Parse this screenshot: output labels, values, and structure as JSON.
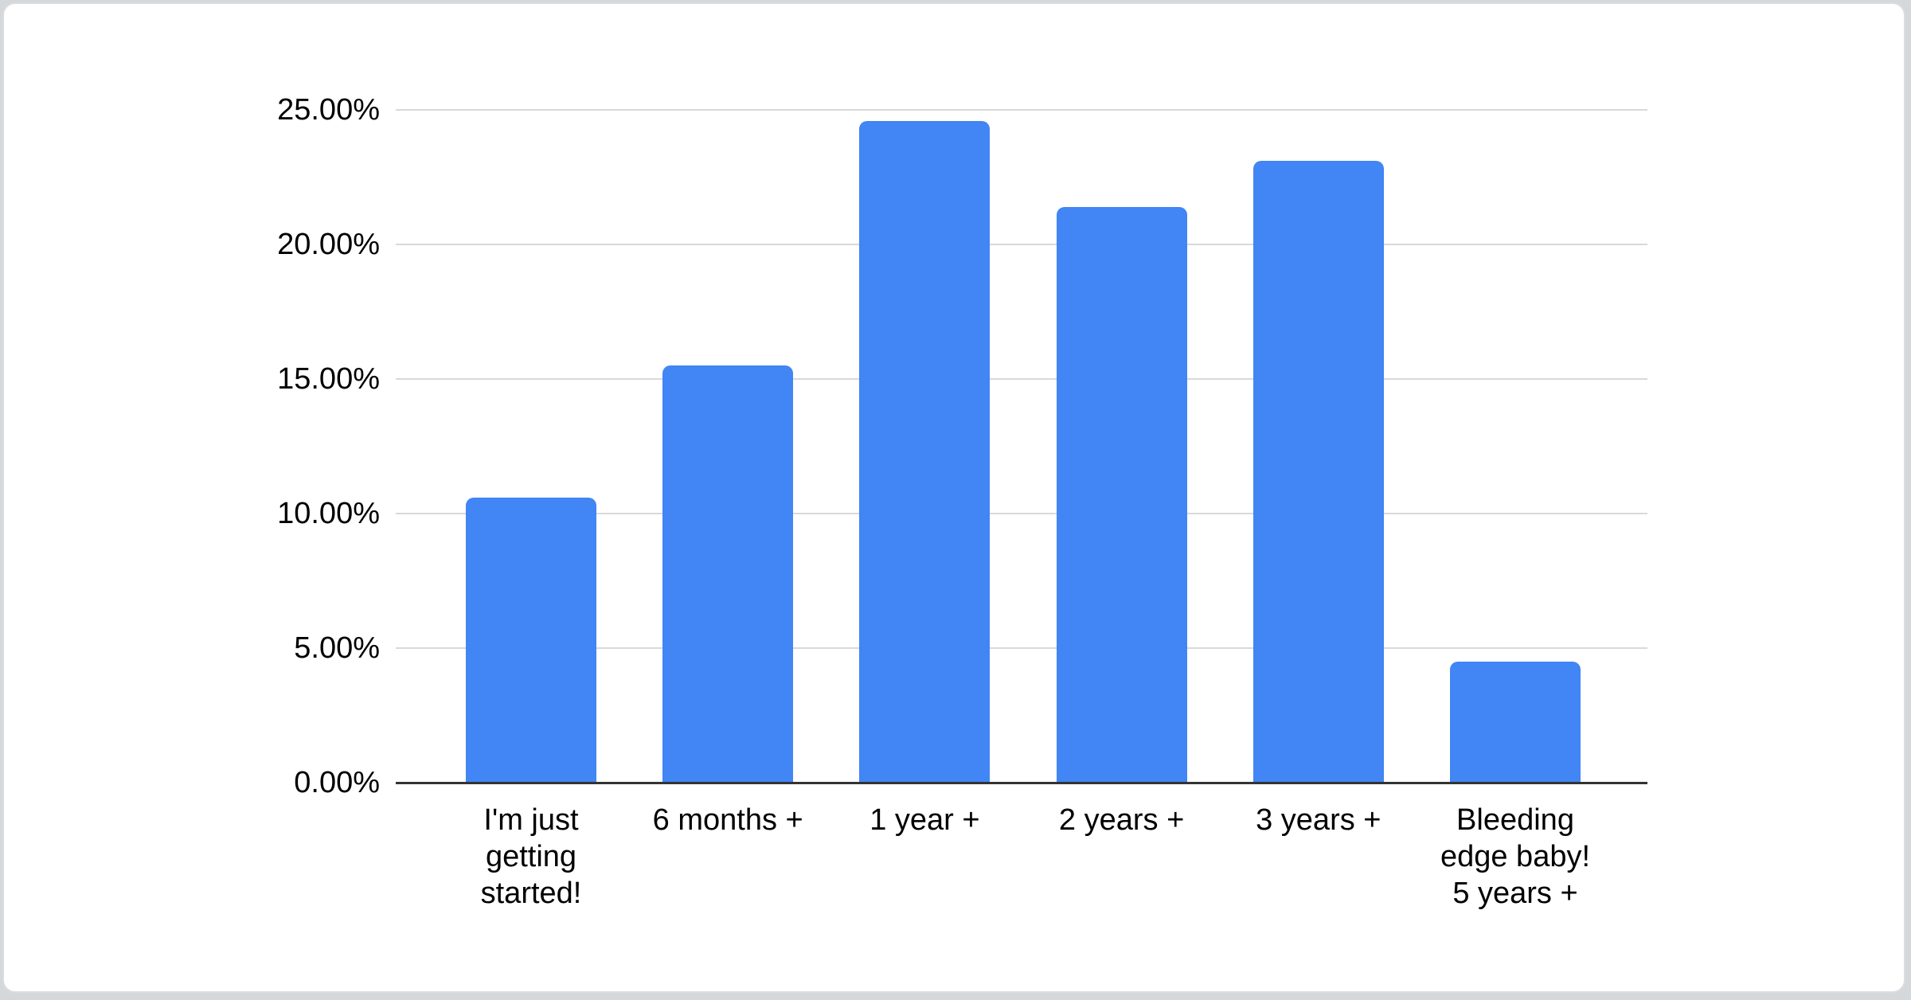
{
  "page": {
    "background_color": "#d5d8db",
    "card_background": "#ffffff",
    "card_border_color": "#dadce0"
  },
  "chart_data": {
    "type": "bar",
    "title": "",
    "xlabel": "",
    "ylabel": "",
    "categories": [
      "I'm just\ngetting\nstarted!",
      "6 months +",
      "1 year +",
      "2 years +",
      "3 years +",
      "Bleeding\nedge baby!\n5 years +"
    ],
    "values": [
      10.6,
      15.5,
      24.6,
      21.4,
      23.1,
      4.5
    ],
    "value_unit": "%",
    "ylim": [
      0,
      25
    ],
    "y_ticks": [
      {
        "value": 0,
        "label": "0.00%"
      },
      {
        "value": 5,
        "label": "5.00%"
      },
      {
        "value": 10,
        "label": "10.00%"
      },
      {
        "value": 15,
        "label": "15.00%"
      },
      {
        "value": 20,
        "label": "20.00%"
      },
      {
        "value": 25,
        "label": "25.00%"
      }
    ],
    "grid": true,
    "legend": "none",
    "bar_color": "#4285f4",
    "gridline_color": "#d9d9d9",
    "axis_line_color": "#333333",
    "text_color": "#000000"
  }
}
